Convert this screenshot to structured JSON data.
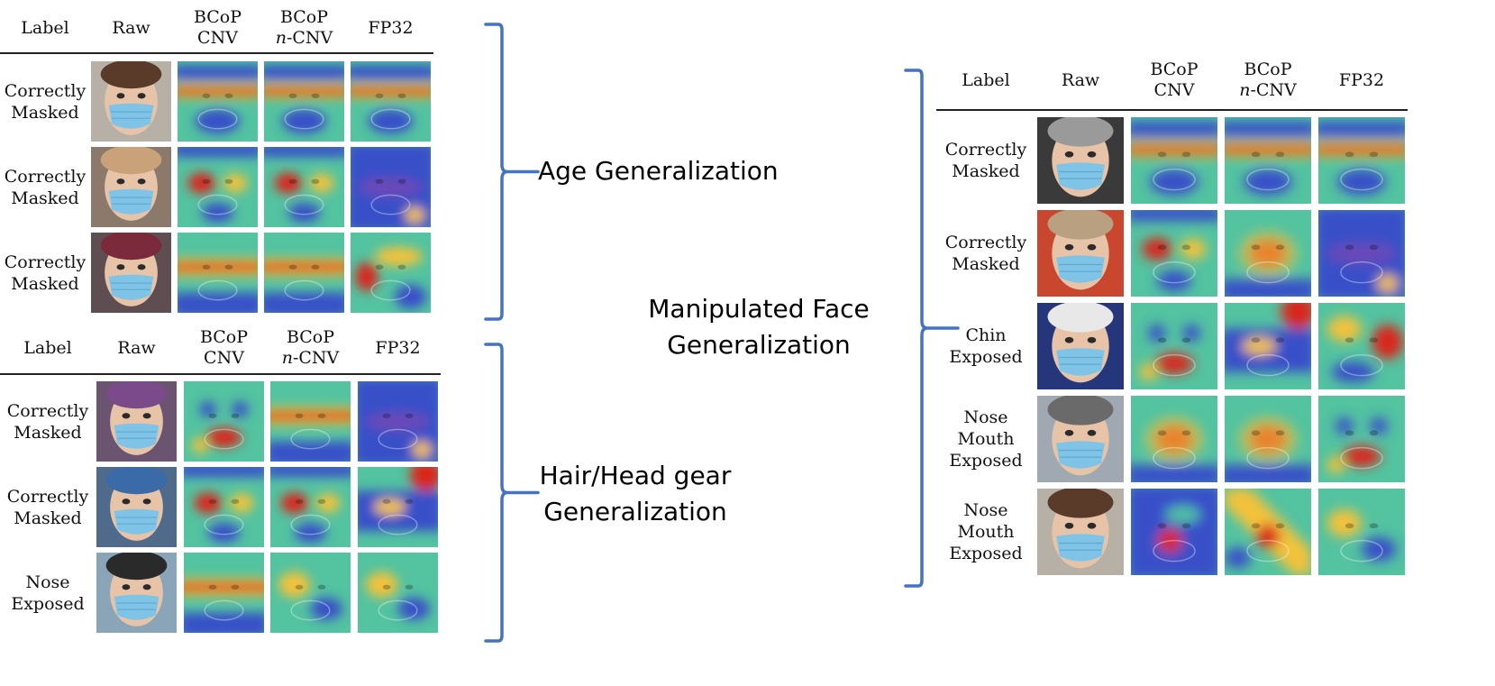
{
  "headers": [
    "Label",
    "Raw",
    "BCoP\nCNV",
    "BCoP\nn-CNV",
    "FP32"
  ],
  "colors": {
    "brace": "#4472c4",
    "skin": "#e7c3a7",
    "mask": "#7fc4e6",
    "hot": "#d9261c",
    "warm": "#f3c23a",
    "mid": "#53c3a0",
    "cool": "#3850c8"
  },
  "groups": [
    {
      "id": "age",
      "caption": "Age Generalization",
      "rows": [
        {
          "label": "Correctly\nMasked",
          "heat": [
            "band-top",
            "band-top",
            "band-top"
          ]
        },
        {
          "label": "Correctly\nMasked",
          "heat": [
            "eyes",
            "eyes",
            "cool"
          ]
        },
        {
          "label": "Correctly\nMasked",
          "heat": [
            "band-mid",
            "band-mid",
            "spot-left"
          ]
        }
      ]
    },
    {
      "id": "hair",
      "caption": "Hair/Head gear\nGeneralization",
      "rows": [
        {
          "label": "Correctly\nMasked",
          "heat": [
            "spots",
            "band-mid",
            "cool"
          ]
        },
        {
          "label": "Correctly\nMasked",
          "heat": [
            "eyes",
            "eyes",
            "corner"
          ]
        },
        {
          "label": "Nose\nExposed",
          "heat": [
            "band-mid",
            "soft",
            "soft"
          ]
        }
      ]
    },
    {
      "id": "manip",
      "caption": "Manipulated Face\nGeneralization",
      "rows": [
        {
          "label": "Correctly\nMasked",
          "heat": [
            "band-top",
            "band-top",
            "band-top"
          ]
        },
        {
          "label": "Correctly\nMasked",
          "heat": [
            "eyes",
            "center",
            "cool"
          ]
        },
        {
          "label": "Chin\nExposed",
          "heat": [
            "spots",
            "corner",
            "spot-right"
          ]
        },
        {
          "label": "Nose\nMouth\nExposed",
          "heat": [
            "center",
            "center",
            "spots"
          ]
        },
        {
          "label": "Nose\nMouth\nExposed",
          "heat": [
            "spot-center",
            "diag",
            "soft"
          ]
        }
      ]
    }
  ]
}
